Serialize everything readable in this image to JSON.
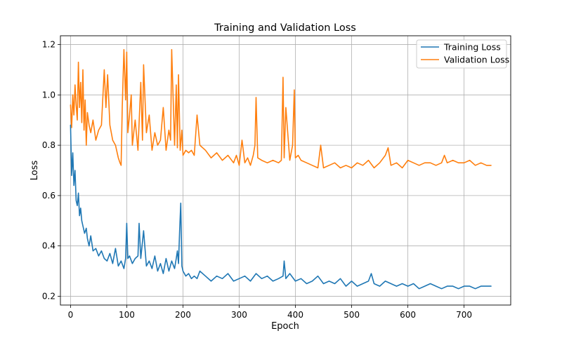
{
  "chart_data": {
    "type": "line",
    "title": "Training and Validation Loss",
    "xlabel": "Epoch",
    "ylabel": "Loss",
    "xlim": [
      -18,
      783
    ],
    "ylim": [
      0.165,
      1.235
    ],
    "xticks": [
      0,
      100,
      200,
      300,
      400,
      500,
      600,
      700
    ],
    "yticks": [
      0.2,
      0.4,
      0.6,
      0.8,
      1.0,
      1.2
    ],
    "ytick_labels": [
      "0.2",
      "0.4",
      "0.6",
      "0.8",
      "1.0",
      "1.2"
    ],
    "grid": true,
    "legend_position": "top-right",
    "series": [
      {
        "name": "Training Loss",
        "color": "#1f77b4",
        "x": [
          0,
          2,
          4,
          6,
          8,
          10,
          12,
          14,
          16,
          18,
          20,
          22,
          25,
          28,
          30,
          33,
          36,
          40,
          45,
          50,
          55,
          60,
          65,
          70,
          75,
          80,
          85,
          90,
          95,
          98,
          100,
          102,
          105,
          110,
          115,
          120,
          122,
          125,
          130,
          135,
          140,
          145,
          150,
          155,
          160,
          165,
          170,
          175,
          180,
          185,
          188,
          190,
          192,
          194,
          196,
          198,
          200,
          205,
          210,
          215,
          220,
          225,
          230,
          240,
          250,
          260,
          270,
          280,
          290,
          300,
          310,
          320,
          330,
          340,
          350,
          360,
          370,
          378,
          380,
          383,
          390,
          400,
          410,
          420,
          430,
          440,
          450,
          460,
          470,
          480,
          490,
          500,
          510,
          520,
          530,
          535,
          540,
          550,
          560,
          570,
          580,
          590,
          600,
          610,
          620,
          630,
          640,
          650,
          660,
          670,
          680,
          690,
          700,
          710,
          720,
          730,
          740,
          748
        ],
        "y": [
          0.88,
          0.68,
          0.77,
          0.64,
          0.7,
          0.58,
          0.56,
          0.61,
          0.52,
          0.55,
          0.5,
          0.48,
          0.45,
          0.47,
          0.43,
          0.4,
          0.44,
          0.38,
          0.39,
          0.36,
          0.38,
          0.35,
          0.34,
          0.37,
          0.33,
          0.39,
          0.32,
          0.34,
          0.31,
          0.35,
          0.49,
          0.35,
          0.36,
          0.33,
          0.35,
          0.36,
          0.49,
          0.35,
          0.46,
          0.32,
          0.34,
          0.31,
          0.36,
          0.3,
          0.33,
          0.29,
          0.35,
          0.3,
          0.34,
          0.31,
          0.35,
          0.38,
          0.33,
          0.46,
          0.57,
          0.32,
          0.3,
          0.28,
          0.29,
          0.27,
          0.28,
          0.27,
          0.3,
          0.28,
          0.26,
          0.28,
          0.27,
          0.29,
          0.26,
          0.27,
          0.28,
          0.26,
          0.29,
          0.27,
          0.28,
          0.26,
          0.27,
          0.28,
          0.34,
          0.27,
          0.29,
          0.26,
          0.27,
          0.25,
          0.26,
          0.28,
          0.25,
          0.26,
          0.25,
          0.27,
          0.24,
          0.26,
          0.24,
          0.25,
          0.26,
          0.29,
          0.25,
          0.24,
          0.26,
          0.25,
          0.24,
          0.25,
          0.24,
          0.25,
          0.23,
          0.24,
          0.25,
          0.24,
          0.23,
          0.24,
          0.24,
          0.23,
          0.24,
          0.24,
          0.23,
          0.24,
          0.24,
          0.24
        ]
      },
      {
        "name": "Validation Loss",
        "color": "#ff7f0e",
        "x": [
          0,
          2,
          4,
          6,
          8,
          10,
          12,
          14,
          16,
          18,
          20,
          22,
          24,
          26,
          28,
          30,
          33,
          36,
          40,
          45,
          50,
          55,
          60,
          63,
          66,
          70,
          75,
          80,
          85,
          88,
          90,
          92,
          95,
          98,
          100,
          102,
          105,
          108,
          110,
          115,
          120,
          125,
          128,
          130,
          135,
          140,
          145,
          150,
          155,
          160,
          165,
          170,
          175,
          178,
          180,
          185,
          188,
          190,
          192,
          195,
          198,
          200,
          205,
          210,
          215,
          220,
          225,
          230,
          240,
          250,
          260,
          270,
          280,
          290,
          295,
          300,
          305,
          310,
          315,
          320,
          325,
          328,
          330,
          333,
          340,
          350,
          360,
          370,
          375,
          378,
          380,
          383,
          390,
          395,
          398,
          400,
          405,
          410,
          420,
          430,
          440,
          445,
          450,
          460,
          470,
          480,
          490,
          500,
          510,
          520,
          530,
          540,
          550,
          560,
          565,
          570,
          580,
          590,
          600,
          610,
          620,
          630,
          640,
          650,
          660,
          665,
          670,
          680,
          690,
          700,
          710,
          720,
          730,
          740,
          748
        ],
        "y": [
          0.96,
          0.87,
          1.0,
          0.92,
          1.04,
          0.96,
          0.9,
          1.13,
          0.95,
          1.05,
          0.89,
          1.1,
          0.86,
          0.98,
          0.8,
          0.93,
          0.88,
          0.85,
          0.9,
          0.82,
          0.86,
          0.88,
          1.1,
          0.95,
          1.08,
          0.88,
          0.82,
          0.8,
          0.75,
          0.73,
          0.72,
          0.95,
          1.18,
          0.98,
          1.17,
          0.85,
          0.92,
          1.0,
          0.8,
          0.9,
          0.78,
          1.05,
          0.82,
          1.12,
          0.85,
          0.92,
          0.78,
          0.85,
          0.8,
          0.82,
          0.95,
          0.78,
          0.86,
          0.82,
          1.18,
          0.8,
          1.04,
          0.79,
          1.08,
          0.78,
          0.86,
          0.76,
          0.78,
          0.77,
          0.78,
          0.76,
          0.92,
          0.8,
          0.78,
          0.75,
          0.77,
          0.74,
          0.76,
          0.73,
          0.76,
          0.72,
          0.82,
          0.73,
          0.75,
          0.72,
          0.76,
          0.8,
          0.99,
          0.75,
          0.74,
          0.73,
          0.74,
          0.73,
          0.74,
          1.07,
          0.75,
          0.95,
          0.74,
          0.8,
          1.02,
          0.75,
          0.76,
          0.74,
          0.73,
          0.72,
          0.71,
          0.8,
          0.71,
          0.72,
          0.73,
          0.71,
          0.72,
          0.71,
          0.73,
          0.72,
          0.74,
          0.71,
          0.73,
          0.76,
          0.79,
          0.72,
          0.73,
          0.71,
          0.74,
          0.73,
          0.72,
          0.73,
          0.73,
          0.72,
          0.73,
          0.76,
          0.73,
          0.74,
          0.73,
          0.73,
          0.74,
          0.72,
          0.73,
          0.72,
          0.72
        ]
      }
    ]
  }
}
